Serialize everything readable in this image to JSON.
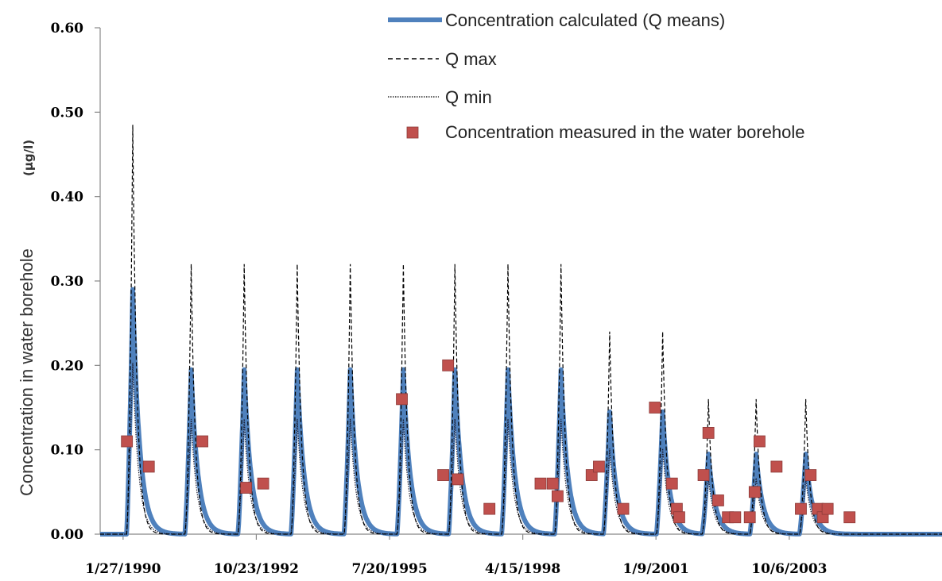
{
  "chart_data": {
    "type": "line",
    "title": "",
    "xlabel": "",
    "ylabel": "Concentration in water borehole",
    "ylabel_unit": "(µg/l)",
    "ylim": [
      0,
      0.6
    ],
    "y_ticks": [
      "0.00",
      "0.10",
      "0.20",
      "0.30",
      "0.40",
      "0.50",
      "0.60"
    ],
    "x_ticks": [
      "1/27/1990",
      "10/23/1992",
      "7/20/1995",
      "4/15/1998",
      "1/9/2001",
      "10/6/2003"
    ],
    "grid": false,
    "legend_position": "top-right",
    "x_range_years": [
      1989.6,
      2006.9
    ],
    "peak_years": [
      1990.27,
      1991.47,
      1992.56,
      1993.65,
      1994.74,
      1995.83,
      1996.89,
      1997.98,
      1999.07,
      2000.07,
      2001.16,
      2002.1,
      2003.08,
      2004.1
    ],
    "peak_values_mean": [
      0.29,
      0.195,
      0.195,
      0.195,
      0.195,
      0.195,
      0.195,
      0.195,
      0.195,
      0.145,
      0.145,
      0.095,
      0.095,
      0.095
    ],
    "peak_values_max": [
      0.485,
      0.32,
      0.32,
      0.32,
      0.32,
      0.32,
      0.32,
      0.32,
      0.32,
      0.24,
      0.24,
      0.16,
      0.16,
      0.16
    ],
    "series": [
      {
        "name": "Concentration calculated (Q means)",
        "style": "line",
        "color": "#4f81bd",
        "width": 6
      },
      {
        "name": "Q max",
        "style": "dashed",
        "color": "#000000"
      },
      {
        "name": "Q min",
        "style": "dotted",
        "color": "#000000"
      },
      {
        "name": "Concentration measured in the water borehole",
        "style": "marker",
        "color": "#c0504d",
        "points": [
          [
            1990.15,
            0.11
          ],
          [
            1990.6,
            0.08
          ],
          [
            1991.7,
            0.11
          ],
          [
            1992.6,
            0.055
          ],
          [
            1992.95,
            0.06
          ],
          [
            1995.8,
            0.16
          ],
          [
            1996.65,
            0.07
          ],
          [
            1996.75,
            0.2
          ],
          [
            1996.95,
            0.065
          ],
          [
            1997.6,
            0.03
          ],
          [
            1998.65,
            0.06
          ],
          [
            1998.9,
            0.06
          ],
          [
            1999.0,
            0.045
          ],
          [
            1999.7,
            0.07
          ],
          [
            1999.85,
            0.08
          ],
          [
            2000.35,
            0.03
          ],
          [
            2001.0,
            0.15
          ],
          [
            2001.35,
            0.06
          ],
          [
            2001.45,
            0.03
          ],
          [
            2001.5,
            0.02
          ],
          [
            2002.0,
            0.07
          ],
          [
            2002.1,
            0.12
          ],
          [
            2002.3,
            0.04
          ],
          [
            2002.5,
            0.02
          ],
          [
            2002.65,
            0.02
          ],
          [
            2002.95,
            0.02
          ],
          [
            2003.05,
            0.05
          ],
          [
            2003.15,
            0.11
          ],
          [
            2003.5,
            0.08
          ],
          [
            2004.0,
            0.03
          ],
          [
            2004.2,
            0.07
          ],
          [
            2004.35,
            0.03
          ],
          [
            2004.45,
            0.02
          ],
          [
            2004.55,
            0.03
          ],
          [
            2005.0,
            0.02
          ]
        ]
      }
    ]
  }
}
